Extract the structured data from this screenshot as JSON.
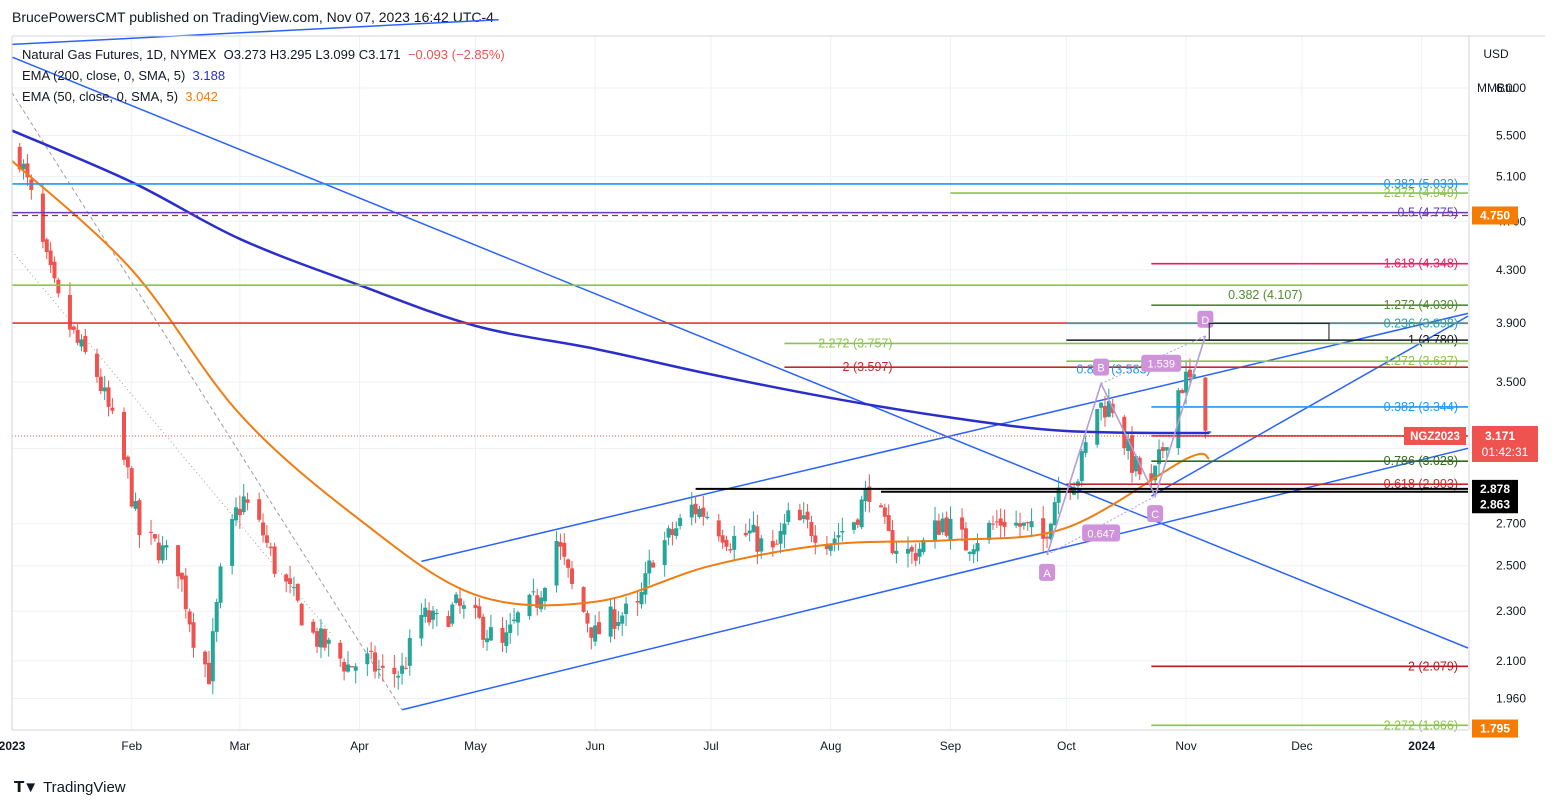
{
  "header": {
    "publisher_line": "BrucePowersCMT published on TradingView.com, Nov 07, 2023 16:42 UTC-4"
  },
  "legend": {
    "symbol": "Natural Gas Futures, 1D, NYMEX",
    "ohlc": "O3.273  H3.295  L3.099  C3.171",
    "change": "−0.093 (−2.85%)",
    "ema200_label": "EMA (200, close, 0, SMA, 5)",
    "ema200_value": "3.188",
    "ema50_label": "EMA (50, close, 0, SMA, 5)",
    "ema50_value": "3.042"
  },
  "axis": {
    "currency": "USD",
    "unit": "MMBtu",
    "y_ticks": [
      "6.000",
      "5.500",
      "5.100",
      "4.700",
      "4.300",
      "3.900",
      "3.500",
      "3.100",
      "2.700",
      "2.500",
      "2.300",
      "2.100",
      "1.960"
    ],
    "x_ticks": [
      "2023",
      "Feb",
      "Mar",
      "Apr",
      "May",
      "Jun",
      "Jul",
      "Aug",
      "Sep",
      "Oct",
      "Nov",
      "Dec",
      "2024"
    ]
  },
  "price_tags": {
    "alert": "4.750",
    "last_symbol": "NGZ2023",
    "last_price": "3.171",
    "countdown": "01:42:31",
    "level1": "2.878",
    "level2": "2.863",
    "low": "1.795"
  },
  "footer": {
    "brand": "TradingView"
  },
  "colors": {
    "up": "#26a69a",
    "down": "#ef5350",
    "ema200": "#2a2ecc",
    "ema50": "#f07c12",
    "trend": "#2962ff",
    "pattern": "#b39ddb"
  },
  "chart_data": {
    "type": "line",
    "title": "Natural Gas Futures, 1D, NYMEX",
    "log_scale": true,
    "ylim": [
      1.85,
      6.6
    ],
    "y_ticks": [
      6.0,
      5.5,
      5.1,
      4.7,
      4.3,
      3.9,
      3.5,
      3.1,
      2.7,
      2.5,
      2.3,
      2.1,
      1.96
    ],
    "x_range": [
      "2023-01-01",
      "2024-01-13"
    ],
    "close_path": [
      [
        "2023-01-03",
        5.3
      ],
      [
        "2023-01-06",
        4.9
      ],
      [
        "2023-01-10",
        4.35
      ],
      [
        "2023-01-13",
        4.05
      ],
      [
        "2023-01-18",
        3.75
      ],
      [
        "2023-01-23",
        3.55
      ],
      [
        "2023-01-27",
        3.25
      ],
      [
        "2023-01-31",
        2.95
      ],
      [
        "2023-02-03",
        2.65
      ],
      [
        "2023-02-08",
        2.58
      ],
      [
        "2023-02-13",
        2.5
      ],
      [
        "2023-02-17",
        2.2
      ],
      [
        "2023-02-21",
        2.05
      ],
      [
        "2023-02-24",
        2.45
      ],
      [
        "2023-02-28",
        2.75
      ],
      [
        "2023-03-02",
        2.82
      ],
      [
        "2023-03-07",
        2.65
      ],
      [
        "2023-03-10",
        2.5
      ],
      [
        "2023-03-15",
        2.35
      ],
      [
        "2023-03-20",
        2.2
      ],
      [
        "2023-03-24",
        2.15
      ],
      [
        "2023-03-29",
        2.08
      ],
      [
        "2023-04-03",
        2.1
      ],
      [
        "2023-04-07",
        2.05
      ],
      [
        "2023-04-12",
        2.06
      ],
      [
        "2023-04-17",
        2.28
      ],
      [
        "2023-04-21",
        2.25
      ],
      [
        "2023-04-26",
        2.32
      ],
      [
        "2023-05-02",
        2.25
      ],
      [
        "2023-05-08",
        2.15
      ],
      [
        "2023-05-12",
        2.27
      ],
      [
        "2023-05-17",
        2.35
      ],
      [
        "2023-05-22",
        2.62
      ],
      [
        "2023-05-26",
        2.4
      ],
      [
        "2023-06-01",
        2.2
      ],
      [
        "2023-06-06",
        2.28
      ],
      [
        "2023-06-12",
        2.3
      ],
      [
        "2023-06-16",
        2.55
      ],
      [
        "2023-06-21",
        2.65
      ],
      [
        "2023-06-26",
        2.78
      ],
      [
        "2023-06-30",
        2.75
      ],
      [
        "2023-07-06",
        2.62
      ],
      [
        "2023-07-11",
        2.65
      ],
      [
        "2023-07-17",
        2.55
      ],
      [
        "2023-07-21",
        2.72
      ],
      [
        "2023-07-27",
        2.68
      ],
      [
        "2023-08-01",
        2.62
      ],
      [
        "2023-08-07",
        2.72
      ],
      [
        "2023-08-11",
        2.88
      ],
      [
        "2023-08-16",
        2.62
      ],
      [
        "2023-08-22",
        2.55
      ],
      [
        "2023-08-25",
        2.6
      ],
      [
        "2023-08-30",
        2.72
      ],
      [
        "2023-09-05",
        2.6
      ],
      [
        "2023-09-11",
        2.68
      ],
      [
        "2023-09-15",
        2.72
      ],
      [
        "2023-09-20",
        2.68
      ],
      [
        "2023-09-25",
        2.62
      ],
      [
        "2023-09-29",
        2.9
      ],
      [
        "2023-10-04",
        2.95
      ],
      [
        "2023-10-09",
        3.35
      ],
      [
        "2023-10-13",
        3.35
      ],
      [
        "2023-10-18",
        3.02
      ],
      [
        "2023-10-23",
        2.88
      ],
      [
        "2023-10-26",
        3.1
      ],
      [
        "2023-10-30",
        3.45
      ],
      [
        "2023-11-01",
        3.52
      ],
      [
        "2023-11-03",
        3.48
      ],
      [
        "2023-11-06",
        3.27
      ],
      [
        "2023-11-07",
        3.171
      ]
    ],
    "ema50": [
      [
        "2023-01-01",
        5.25
      ],
      [
        "2023-02-01",
        4.3
      ],
      [
        "2023-03-01",
        3.3
      ],
      [
        "2023-04-01",
        2.72
      ],
      [
        "2023-05-01",
        2.37
      ],
      [
        "2023-06-01",
        2.34
      ],
      [
        "2023-07-01",
        2.5
      ],
      [
        "2023-08-01",
        2.6
      ],
      [
        "2023-09-01",
        2.62
      ],
      [
        "2023-10-01",
        2.68
      ],
      [
        "2023-11-01",
        3.04
      ],
      [
        "2023-11-07",
        3.042
      ]
    ],
    "ema200": [
      [
        "2023-01-01",
        5.55
      ],
      [
        "2023-02-01",
        5.05
      ],
      [
        "2023-03-01",
        4.55
      ],
      [
        "2023-04-01",
        4.18
      ],
      [
        "2023-05-01",
        3.88
      ],
      [
        "2023-06-01",
        3.72
      ],
      [
        "2023-07-01",
        3.55
      ],
      [
        "2023-08-01",
        3.4
      ],
      [
        "2023-09-01",
        3.28
      ],
      [
        "2023-10-01",
        3.2
      ],
      [
        "2023-11-07",
        3.188
      ]
    ],
    "horizontal_levels": [
      {
        "price": 5.033,
        "label": "0.382 (5.033)",
        "color": "#2196f3",
        "from": "2023-01-01"
      },
      {
        "price": 4.949,
        "label": "2.272 (4.949)",
        "color": "#8bc34a",
        "from": "2023-09-01"
      },
      {
        "price": 4.775,
        "label": "0.5 (4.775)",
        "color": "#673ab7",
        "from": "2023-01-01"
      },
      {
        "price": 4.348,
        "label": "1.618 (4.348)",
        "color": "#e91e63",
        "from": "2023-10-23"
      },
      {
        "price": 4.18,
        "label": "",
        "color": "#8bc34a",
        "from": "2023-01-01"
      },
      {
        "price": 4.03,
        "label": "1.272 (4.030)",
        "color": "#558b2f",
        "from": "2023-10-23"
      },
      {
        "price": 3.9,
        "label": "",
        "color": "#e53935",
        "from": "2023-01-01"
      },
      {
        "price": 3.898,
        "label": "0.236 (3.898)",
        "color": "#26a69a",
        "from": "2023-10-01"
      },
      {
        "price": 3.78,
        "label": "1 (3.780)",
        "color": "#131722",
        "from": "2023-10-01"
      },
      {
        "price": 3.757,
        "label": "2.272 (3.757)",
        "color": "#8bc34a",
        "from": "2023-07-20"
      },
      {
        "price": 3.637,
        "label": "1.272 (3.637)",
        "color": "#8bc34a",
        "from": "2023-10-01"
      },
      {
        "price": 3.597,
        "label": "2 (3.597)",
        "color": "#c62828",
        "from": "2023-07-20"
      },
      {
        "price": 3.344,
        "label": "0.382 (3.344)",
        "color": "#2196f3",
        "from": "2023-10-23"
      },
      {
        "price": 3.171,
        "label": "0.618",
        "color": "#c62828",
        "from": "2023-10-23"
      },
      {
        "price": 3.028,
        "label": "0.786 (3.028)",
        "color": "#33691e",
        "from": "2023-10-23"
      },
      {
        "price": 2.903,
        "label": "0.618 (2.903)",
        "color": "#c62828",
        "from": "2023-10-01"
      },
      {
        "price": 2.878,
        "label": "",
        "color": "#000000",
        "from": "2023-06-27"
      },
      {
        "price": 2.863,
        "label": "",
        "color": "#000000",
        "from": "2023-08-14"
      },
      {
        "price": 2.079,
        "label": "2 (2.079)",
        "color": "#b71c1c",
        "from": "2023-10-23"
      },
      {
        "price": 1.866,
        "label": "2.272 (1.866)",
        "color": "#8bc34a",
        "from": "2023-10-23"
      }
    ],
    "overlapping_labels": [
      "0.382 (4.107)",
      "0.886 (3.583)",
      "1.539"
    ],
    "abcd_pattern": {
      "points": [
        {
          "label": "A",
          "date": "2023-09-26",
          "price": 2.55
        },
        {
          "label": "B",
          "date": "2023-10-10",
          "price": 3.49
        },
        {
          "label": "C",
          "date": "2023-10-24",
          "price": 2.84
        },
        {
          "label": "D",
          "date": "2023-11-06",
          "price": 3.81
        }
      ],
      "annotations": [
        "0.647"
      ]
    }
  }
}
